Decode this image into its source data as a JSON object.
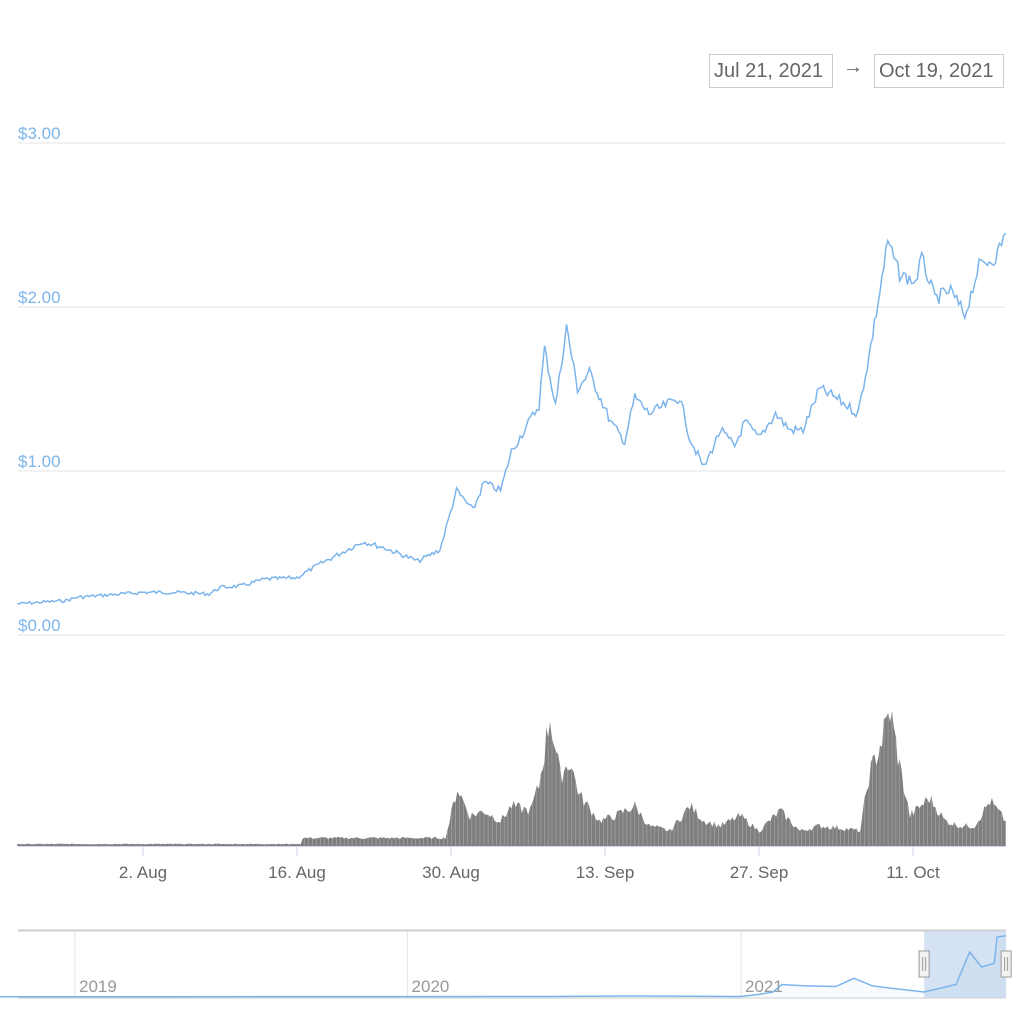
{
  "range_selector": {
    "from": "Jul 21, 2021",
    "arrow": "→",
    "to": "Oct 19, 2021"
  },
  "colors": {
    "price": "#7cb5ec",
    "volume": "#7f7f7f",
    "grid": "#e6e6e6",
    "navigator_mask": "#c6d8ef"
  },
  "chart_data": {
    "type": "line",
    "title": "",
    "xlabel": "",
    "ylabel": "",
    "x_range": [
      "2021-07-21",
      "2021-10-19"
    ],
    "ylim": [
      0,
      3
    ],
    "y_ticks": [
      "$0.00",
      "$1.00",
      "$2.00",
      "$3.00"
    ],
    "y_tick_values": [
      0,
      1,
      2,
      3
    ],
    "x_ticks": [
      "2. Aug",
      "16. Aug",
      "30. Aug",
      "13. Sep",
      "27. Sep",
      "11. Oct"
    ],
    "x_tick_dates": [
      "2021-08-02",
      "2021-08-16",
      "2021-08-30",
      "2021-09-13",
      "2021-09-27",
      "2021-10-11"
    ],
    "grid": true,
    "price": [
      [
        "2021-07-21 14:00",
        0.19
      ],
      [
        "2021-07-26 00:00",
        0.21
      ],
      [
        "2021-07-27 00:00",
        0.23
      ],
      [
        "2021-08-02 00:00",
        0.26
      ],
      [
        "2021-08-05 00:00",
        0.26
      ],
      [
        "2021-08-08 00:00",
        0.25
      ],
      [
        "2021-08-09 00:00",
        0.29
      ],
      [
        "2021-08-11 00:00",
        0.3
      ],
      [
        "2021-08-13 00:00",
        0.34
      ],
      [
        "2021-08-16 00:00",
        0.35
      ],
      [
        "2021-08-18 00:00",
        0.43
      ],
      [
        "2021-08-20 00:00",
        0.5
      ],
      [
        "2021-08-22 00:00",
        0.57
      ],
      [
        "2021-08-24 00:00",
        0.53
      ],
      [
        "2021-08-27 00:00",
        0.45
      ],
      [
        "2021-08-29 00:00",
        0.52
      ],
      [
        "2021-08-30 12:00",
        0.88
      ],
      [
        "2021-09-01 00:00",
        0.76
      ],
      [
        "2021-09-02 00:00",
        0.93
      ],
      [
        "2021-09-03 12:00",
        0.88
      ],
      [
        "2021-09-04 12:00",
        1.12
      ],
      [
        "2021-09-05 16:00",
        1.25
      ],
      [
        "2021-09-07 00:00",
        1.4
      ],
      [
        "2021-09-07 12:00",
        1.75
      ],
      [
        "2021-09-08 12:00",
        1.4
      ],
      [
        "2021-09-09 12:00",
        1.88
      ],
      [
        "2021-09-10 12:00",
        1.5
      ],
      [
        "2021-09-11 14:00",
        1.6
      ],
      [
        "2021-09-13 12:00",
        1.3
      ],
      [
        "2021-09-14 19:00",
        1.18
      ],
      [
        "2021-09-15 17:00",
        1.45
      ],
      [
        "2021-09-17 00:00",
        1.35
      ],
      [
        "2021-09-18 12:00",
        1.4
      ],
      [
        "2021-09-19 19:00",
        1.45
      ],
      [
        "2021-09-20 17:00",
        1.2
      ],
      [
        "2021-09-22 00:00",
        1.02
      ],
      [
        "2021-09-23 12:00",
        1.25
      ],
      [
        "2021-09-24 19:00",
        1.15
      ],
      [
        "2021-09-25 17:00",
        1.3
      ],
      [
        "2021-09-27 00:00",
        1.2
      ],
      [
        "2021-09-28 12:00",
        1.35
      ],
      [
        "2021-09-29 19:00",
        1.25
      ],
      [
        "2021-10-01 00:00",
        1.25
      ],
      [
        "2021-10-02 12:00",
        1.5
      ],
      [
        "2021-10-03 22:00",
        1.45
      ],
      [
        "2021-10-06 00:00",
        1.35
      ],
      [
        "2021-10-07 00:00",
        1.7
      ],
      [
        "2021-10-08 00:00",
        2.1
      ],
      [
        "2021-10-08 17:00",
        2.4
      ],
      [
        "2021-10-09 19:00",
        2.2
      ],
      [
        "2021-10-11 05:00",
        2.15
      ],
      [
        "2021-10-11 19:00",
        2.3
      ],
      [
        "2021-10-13 00:00",
        2.05
      ],
      [
        "2021-10-14 10:00",
        2.1
      ],
      [
        "2021-10-15 17:00",
        1.95
      ],
      [
        "2021-10-17 00:00",
        2.25
      ],
      [
        "2021-10-18 12:00",
        2.3
      ],
      [
        "2021-10-19 10:00",
        2.45
      ]
    ],
    "volume_relative": [
      [
        "2021-07-21 14:00",
        2
      ],
      [
        "2021-08-16 08:00",
        2
      ],
      [
        "2021-08-16 12:00",
        8
      ],
      [
        "2021-08-29 12:00",
        8
      ],
      [
        "2021-08-30 14:00",
        58
      ],
      [
        "2021-08-31 17:00",
        30
      ],
      [
        "2021-09-02 00:00",
        35
      ],
      [
        "2021-09-03 12:00",
        25
      ],
      [
        "2021-09-04 12:00",
        40
      ],
      [
        "2021-09-06 05:00",
        35
      ],
      [
        "2021-09-07 00:00",
        60
      ],
      [
        "2021-09-08 00:00",
        130
      ],
      [
        "2021-09-08 22:00",
        70
      ],
      [
        "2021-09-09 19:00",
        85
      ],
      [
        "2021-09-10 17:00",
        50
      ],
      [
        "2021-09-12 12:00",
        25
      ],
      [
        "2021-09-13 22:00",
        30
      ],
      [
        "2021-09-15 17:00",
        40
      ],
      [
        "2021-09-17 00:00",
        20
      ],
      [
        "2021-09-18 22:00",
        15
      ],
      [
        "2021-09-20 17:00",
        40
      ],
      [
        "2021-09-22 00:00",
        25
      ],
      [
        "2021-09-23 12:00",
        20
      ],
      [
        "2021-09-25 07:00",
        30
      ],
      [
        "2021-09-27 00:00",
        15
      ],
      [
        "2021-09-28 22:00",
        35
      ],
      [
        "2021-09-30 17:00",
        15
      ],
      [
        "2021-10-02 12:00",
        20
      ],
      [
        "2021-10-04 10:00",
        18
      ],
      [
        "2021-10-06 05:00",
        15
      ],
      [
        "2021-10-07 00:00",
        70
      ],
      [
        "2021-10-08 00:00",
        100
      ],
      [
        "2021-10-08 22:00",
        135
      ],
      [
        "2021-10-09 19:00",
        80
      ],
      [
        "2021-10-10 17:00",
        30
      ],
      [
        "2021-10-12 12:00",
        48
      ],
      [
        "2021-10-13 22:00",
        25
      ],
      [
        "2021-10-15 07:00",
        20
      ],
      [
        "2021-10-16 14:00",
        20
      ],
      [
        "2021-10-18 00:00",
        45
      ],
      [
        "2021-10-19 10:00",
        25
      ]
    ]
  },
  "navigator": {
    "year_labels": [
      "2019",
      "2020",
      "2021"
    ],
    "year_dates": [
      "2019-01-01",
      "2020-01-01",
      "2021-01-01"
    ],
    "x_range": [
      "2018-10-10",
      "2021-10-19"
    ],
    "selected_range": [
      "2021-07-21",
      "2021-10-19"
    ],
    "series": [
      [
        "2018-10-10",
        0.01
      ],
      [
        "2020-06-01",
        0.02
      ],
      [
        "2020-09-01",
        0.04
      ],
      [
        "2020-12-31",
        0.02
      ],
      [
        "2021-01-20",
        0.1
      ],
      [
        "2021-02-05",
        0.2
      ],
      [
        "2021-02-15",
        0.5
      ],
      [
        "2021-03-10",
        0.45
      ],
      [
        "2021-04-15",
        0.42
      ],
      [
        "2021-05-05",
        0.75
      ],
      [
        "2021-05-15",
        0.6
      ],
      [
        "2021-05-25",
        0.45
      ],
      [
        "2021-06-15",
        0.35
      ],
      [
        "2021-07-21",
        0.2
      ],
      [
        "2021-08-25",
        0.5
      ],
      [
        "2021-09-09",
        1.8
      ],
      [
        "2021-09-22",
        1.2
      ],
      [
        "2021-10-06",
        1.35
      ],
      [
        "2021-10-09",
        2.4
      ],
      [
        "2021-10-19",
        2.45
      ]
    ]
  }
}
